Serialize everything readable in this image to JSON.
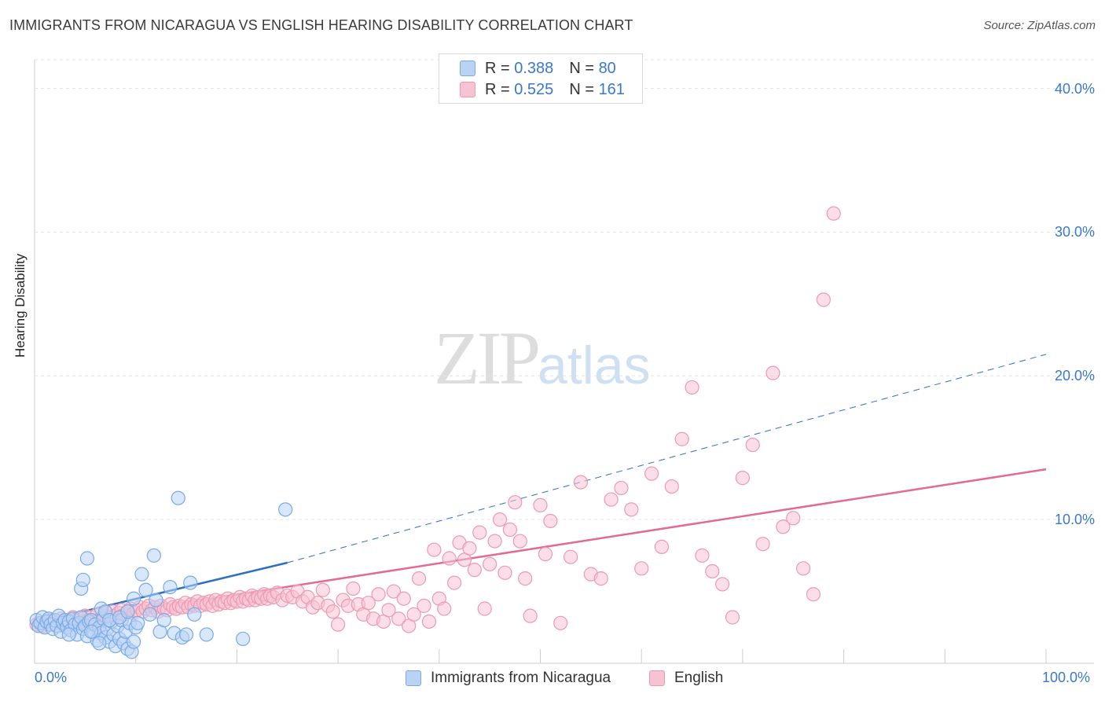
{
  "header": {
    "title": "IMMIGRANTS FROM NICARAGUA VS ENGLISH HEARING DISABILITY CORRELATION CHART",
    "source": "Source: ZipAtlas.com"
  },
  "watermark": {
    "zip": "ZIP",
    "atlas": "atlas"
  },
  "legend_top": [
    {
      "r_label": "R =",
      "r_value": "0.388",
      "n_label": "N =",
      "n_value": "80"
    },
    {
      "r_label": "R =",
      "r_value": "0.525",
      "n_label": "N =",
      "n_value": "161"
    }
  ],
  "legend_bottom": [
    "Immigrants from Nicaragua",
    "English"
  ],
  "colors": {
    "blue_fill": "#b9d3f5",
    "blue_stroke": "#7aaae3",
    "blue_line": "#2e6fc4",
    "pink_fill": "#f7c3d3",
    "pink_stroke": "#eb9ab3",
    "pink_line": "#e36a92",
    "grid": "#e3e3e3",
    "tick_text": "#3a78c9"
  },
  "chart_data": {
    "type": "scatter",
    "title": "IMMIGRANTS FROM NICARAGUA VS ENGLISH HEARING DISABILITY CORRELATION CHART",
    "xlabel": "",
    "ylabel": "Hearing Disability",
    "xlim": [
      0,
      100
    ],
    "ylim": [
      0,
      42
    ],
    "x_tick_labels": [
      "0.0%",
      "100.0%"
    ],
    "y_ticks": [
      10,
      20,
      30,
      40
    ],
    "y_tick_labels": [
      "10.0%",
      "20.0%",
      "30.0%",
      "40.0%"
    ],
    "grid": true,
    "legend_position": "top-center",
    "series": [
      {
        "name": "Immigrants from Nicaragua",
        "r": 0.388,
        "n": 80,
        "trend": {
          "solid": [
            [
              0,
              2.8
            ],
            [
              25,
              7.0
            ]
          ],
          "dashed": [
            [
              25,
              7.0
            ],
            [
              100,
              21.5
            ]
          ]
        },
        "points": [
          [
            0.2,
            3.0
          ],
          [
            0.4,
            2.6
          ],
          [
            0.6,
            2.8
          ],
          [
            0.8,
            3.2
          ],
          [
            1.0,
            2.5
          ],
          [
            1.2,
            2.9
          ],
          [
            1.4,
            3.1
          ],
          [
            1.6,
            2.7
          ],
          [
            1.8,
            2.4
          ],
          [
            2.0,
            3.0
          ],
          [
            2.2,
            2.6
          ],
          [
            2.4,
            3.3
          ],
          [
            2.6,
            2.2
          ],
          [
            2.8,
            2.8
          ],
          [
            3.0,
            3.0
          ],
          [
            3.2,
            2.5
          ],
          [
            3.4,
            2.9
          ],
          [
            3.6,
            2.3
          ],
          [
            3.8,
            3.1
          ],
          [
            4.0,
            2.7
          ],
          [
            4.2,
            2.0
          ],
          [
            4.4,
            2.8
          ],
          [
            4.6,
            3.2
          ],
          [
            4.8,
            2.4
          ],
          [
            5.0,
            2.6
          ],
          [
            5.2,
            1.9
          ],
          [
            5.4,
            2.9
          ],
          [
            5.6,
            3.0
          ],
          [
            5.8,
            2.2
          ],
          [
            6.0,
            2.7
          ],
          [
            6.2,
            1.6
          ],
          [
            6.4,
            2.5
          ],
          [
            6.6,
            2.1
          ],
          [
            6.8,
            3.1
          ],
          [
            7.0,
            1.8
          ],
          [
            7.2,
            2.4
          ],
          [
            7.4,
            1.5
          ],
          [
            7.6,
            2.9
          ],
          [
            7.8,
            2.0
          ],
          [
            8.0,
            1.2
          ],
          [
            8.2,
            2.6
          ],
          [
            8.4,
            1.7
          ],
          [
            8.6,
            3.0
          ],
          [
            8.8,
            1.4
          ],
          [
            9.0,
            2.2
          ],
          [
            9.2,
            1.0
          ],
          [
            9.4,
            2.8
          ],
          [
            9.6,
            0.8
          ],
          [
            9.8,
            1.5
          ],
          [
            10.0,
            2.5
          ],
          [
            4.6,
            5.2
          ],
          [
            4.8,
            5.8
          ],
          [
            5.2,
            7.3
          ],
          [
            6.6,
            3.8
          ],
          [
            7.0,
            3.6
          ],
          [
            7.4,
            3.0
          ],
          [
            8.4,
            3.2
          ],
          [
            9.2,
            3.6
          ],
          [
            9.8,
            4.5
          ],
          [
            10.2,
            2.8
          ],
          [
            10.6,
            6.2
          ],
          [
            11.0,
            5.1
          ],
          [
            11.4,
            3.4
          ],
          [
            11.8,
            7.5
          ],
          [
            12.0,
            4.4
          ],
          [
            12.4,
            2.2
          ],
          [
            12.8,
            3.0
          ],
          [
            13.4,
            5.3
          ],
          [
            13.8,
            2.1
          ],
          [
            14.2,
            11.5
          ],
          [
            14.6,
            1.8
          ],
          [
            15.0,
            2.0
          ],
          [
            15.4,
            5.6
          ],
          [
            15.8,
            3.4
          ],
          [
            17.0,
            2.0
          ],
          [
            20.6,
            1.7
          ],
          [
            24.8,
            10.7
          ],
          [
            3.4,
            2.0
          ],
          [
            5.6,
            2.2
          ],
          [
            6.4,
            1.4
          ]
        ]
      },
      {
        "name": "English",
        "r": 0.525,
        "n": 161,
        "trend": {
          "solid": [
            [
              0,
              2.6
            ],
            [
              100,
              13.5
            ]
          ]
        },
        "points": [
          [
            0.2,
            2.7
          ],
          [
            0.5,
            2.8
          ],
          [
            0.8,
            2.6
          ],
          [
            1.1,
            2.9
          ],
          [
            1.4,
            2.7
          ],
          [
            1.7,
            3.0
          ],
          [
            2.0,
            2.8
          ],
          [
            2.3,
            2.6
          ],
          [
            2.6,
            3.1
          ],
          [
            2.9,
            2.9
          ],
          [
            3.2,
            2.7
          ],
          [
            3.5,
            3.0
          ],
          [
            3.8,
            3.2
          ],
          [
            4.1,
            2.8
          ],
          [
            4.4,
            3.1
          ],
          [
            4.7,
            2.9
          ],
          [
            5.0,
            3.3
          ],
          [
            5.3,
            3.0
          ],
          [
            5.6,
            3.2
          ],
          [
            5.9,
            2.9
          ],
          [
            6.2,
            3.4
          ],
          [
            6.5,
            3.1
          ],
          [
            6.8,
            3.3
          ],
          [
            7.1,
            3.5
          ],
          [
            7.4,
            3.2
          ],
          [
            7.7,
            3.6
          ],
          [
            8.0,
            3.3
          ],
          [
            8.3,
            3.5
          ],
          [
            8.6,
            3.7
          ],
          [
            8.9,
            3.4
          ],
          [
            9.2,
            3.6
          ],
          [
            9.5,
            3.8
          ],
          [
            9.8,
            3.5
          ],
          [
            10.1,
            3.7
          ],
          [
            10.4,
            3.9
          ],
          [
            10.7,
            3.6
          ],
          [
            11.0,
            3.8
          ],
          [
            11.3,
            4.0
          ],
          [
            11.6,
            3.7
          ],
          [
            11.9,
            3.9
          ],
          [
            12.2,
            3.6
          ],
          [
            12.5,
            4.0
          ],
          [
            12.8,
            3.8
          ],
          [
            13.1,
            3.7
          ],
          [
            13.4,
            4.1
          ],
          [
            13.7,
            3.9
          ],
          [
            14.0,
            3.8
          ],
          [
            14.3,
            4.0
          ],
          [
            14.6,
            3.9
          ],
          [
            14.9,
            4.2
          ],
          [
            15.2,
            3.9
          ],
          [
            15.5,
            4.1
          ],
          [
            15.8,
            4.0
          ],
          [
            16.1,
            4.3
          ],
          [
            16.4,
            4.0
          ],
          [
            16.7,
            4.2
          ],
          [
            17.0,
            4.1
          ],
          [
            17.3,
            4.3
          ],
          [
            17.6,
            4.0
          ],
          [
            17.9,
            4.4
          ],
          [
            18.2,
            4.1
          ],
          [
            18.5,
            4.3
          ],
          [
            18.8,
            4.2
          ],
          [
            19.1,
            4.5
          ],
          [
            19.4,
            4.2
          ],
          [
            19.7,
            4.4
          ],
          [
            20.0,
            4.3
          ],
          [
            20.3,
            4.6
          ],
          [
            20.6,
            4.3
          ],
          [
            20.9,
            4.5
          ],
          [
            21.2,
            4.4
          ],
          [
            21.5,
            4.7
          ],
          [
            21.8,
            4.4
          ],
          [
            22.1,
            4.6
          ],
          [
            22.4,
            4.5
          ],
          [
            22.7,
            4.8
          ],
          [
            23.0,
            4.5
          ],
          [
            23.3,
            4.7
          ],
          [
            23.6,
            4.6
          ],
          [
            24.0,
            4.9
          ],
          [
            24.5,
            4.4
          ],
          [
            25.0,
            4.7
          ],
          [
            25.5,
            4.6
          ],
          [
            26.0,
            5.0
          ],
          [
            26.5,
            4.3
          ],
          [
            27.0,
            4.6
          ],
          [
            27.5,
            3.9
          ],
          [
            28.0,
            4.2
          ],
          [
            28.5,
            5.1
          ],
          [
            29.0,
            4.0
          ],
          [
            29.5,
            3.6
          ],
          [
            30.0,
            2.7
          ],
          [
            30.5,
            4.4
          ],
          [
            31.0,
            4.0
          ],
          [
            31.5,
            5.2
          ],
          [
            32.0,
            4.1
          ],
          [
            32.5,
            3.4
          ],
          [
            33.0,
            4.2
          ],
          [
            33.5,
            3.1
          ],
          [
            34.0,
            4.8
          ],
          [
            34.5,
            2.9
          ],
          [
            35.0,
            3.7
          ],
          [
            35.5,
            5.0
          ],
          [
            36.0,
            3.1
          ],
          [
            36.5,
            4.5
          ],
          [
            37.0,
            2.6
          ],
          [
            37.5,
            3.4
          ],
          [
            38.0,
            5.9
          ],
          [
            38.5,
            4.0
          ],
          [
            39.0,
            2.9
          ],
          [
            39.5,
            7.9
          ],
          [
            40.0,
            4.5
          ],
          [
            40.5,
            3.8
          ],
          [
            41.0,
            7.3
          ],
          [
            41.5,
            5.6
          ],
          [
            42.0,
            8.4
          ],
          [
            42.5,
            7.2
          ],
          [
            43.0,
            8.0
          ],
          [
            43.5,
            6.5
          ],
          [
            44.0,
            9.1
          ],
          [
            44.5,
            3.8
          ],
          [
            45.0,
            6.9
          ],
          [
            45.5,
            8.5
          ],
          [
            46.0,
            10.0
          ],
          [
            46.5,
            6.3
          ],
          [
            47.0,
            9.3
          ],
          [
            47.5,
            11.2
          ],
          [
            48.0,
            8.5
          ],
          [
            48.5,
            5.9
          ],
          [
            49.0,
            3.3
          ],
          [
            50.0,
            11.0
          ],
          [
            50.5,
            7.6
          ],
          [
            51.0,
            9.9
          ],
          [
            52.0,
            2.8
          ],
          [
            53.0,
            7.4
          ],
          [
            54.0,
            12.6
          ],
          [
            55.0,
            6.2
          ],
          [
            56.0,
            5.9
          ],
          [
            57.0,
            11.4
          ],
          [
            58.0,
            12.2
          ],
          [
            59.0,
            10.7
          ],
          [
            60.0,
            6.6
          ],
          [
            61.0,
            13.2
          ],
          [
            62.0,
            8.1
          ],
          [
            63.0,
            12.3
          ],
          [
            64.0,
            15.6
          ],
          [
            65.0,
            19.2
          ],
          [
            66.0,
            7.5
          ],
          [
            67.0,
            6.4
          ],
          [
            68.0,
            5.5
          ],
          [
            69.0,
            3.2
          ],
          [
            70.0,
            12.9
          ],
          [
            71.0,
            15.2
          ],
          [
            72.0,
            8.3
          ],
          [
            73.0,
            20.2
          ],
          [
            74.0,
            9.5
          ],
          [
            75.0,
            10.1
          ],
          [
            76.0,
            6.6
          ],
          [
            77.0,
            4.8
          ],
          [
            78.0,
            25.3
          ],
          [
            79.0,
            31.3
          ]
        ]
      }
    ]
  }
}
